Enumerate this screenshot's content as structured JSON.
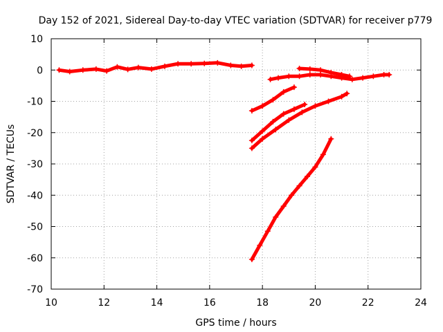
{
  "chart_data": {
    "type": "scatter",
    "title": "Day 152 of 2021, Sidereal Day-to-day VTEC variation (SDTVAR) for receiver p779",
    "xlabel": "GPS time / hours",
    "ylabel": "SDTVAR / TECUs",
    "xlim": [
      10,
      24
    ],
    "ylim": [
      -70,
      10
    ],
    "xticks": [
      10,
      12,
      14,
      16,
      18,
      20,
      22,
      24
    ],
    "yticks": [
      10,
      0,
      -10,
      -20,
      -30,
      -40,
      -50,
      -60,
      -70
    ],
    "grid": true,
    "legend": "none",
    "marker": "plus",
    "color": "#ff0000",
    "series": [
      {
        "x": [
          10.3,
          10.7,
          11.2,
          11.7,
          12.1,
          12.5,
          12.9,
          13.3,
          13.8,
          14.3,
          14.8,
          15.3,
          15.8,
          16.3,
          16.8,
          17.2,
          17.6
        ],
        "y": [
          0,
          -0.5,
          0,
          0.3,
          -0.3,
          1,
          0.2,
          0.8,
          0.3,
          1.2,
          2,
          2,
          2.1,
          2.3,
          1.5,
          1.2,
          1.5
        ]
      },
      {
        "x": [
          18.3,
          18.6,
          19.0,
          19.4,
          19.8,
          20.2,
          20.6,
          21.0,
          21.4,
          21.8,
          22.2,
          22.6,
          22.8
        ],
        "y": [
          -3,
          -2.5,
          -2,
          -2,
          -1.5,
          -1.5,
          -2,
          -2.5,
          -3,
          -2.5,
          -2,
          -1.5,
          -1.5
        ]
      },
      {
        "x": [
          19.4,
          19.8,
          20.2,
          20.6,
          21.0,
          21.3
        ],
        "y": [
          0.5,
          0.3,
          0,
          -0.8,
          -1.5,
          -2
        ]
      },
      {
        "x": [
          17.6,
          18.0,
          18.4,
          18.8,
          19.2
        ],
        "y": [
          -13,
          -11.5,
          -9.5,
          -7,
          -5.5
        ]
      },
      {
        "x": [
          17.6,
          18.0,
          18.4,
          18.8,
          19.2,
          19.6
        ],
        "y": [
          -22.5,
          -19.5,
          -16.5,
          -14,
          -12.5,
          -11
        ]
      },
      {
        "x": [
          17.6,
          18.0,
          18.5,
          19.0,
          19.5,
          20.0,
          20.5,
          21.0,
          21.2
        ],
        "y": [
          -25,
          -22,
          -19,
          -16,
          -13.5,
          -11.5,
          -10,
          -8.5,
          -7.5
        ]
      },
      {
        "x": [
          17.6,
          17.9,
          18.2,
          18.5,
          18.8,
          19.1,
          19.4,
          19.7,
          20.0,
          20.3,
          20.6
        ],
        "y": [
          -60.5,
          -56,
          -51.5,
          -47,
          -43.5,
          -40,
          -37,
          -34,
          -31,
          -27,
          -22
        ]
      }
    ]
  }
}
